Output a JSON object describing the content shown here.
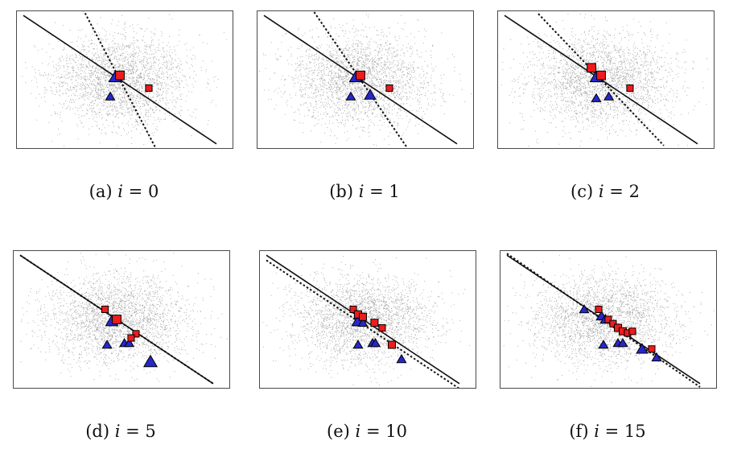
{
  "panels": [
    {
      "caption": {
        "label": "(a)",
        "var": "i",
        "eq": " = ",
        "value": "0"
      },
      "solid_line": [
        [
          -1.0,
          0.76
        ],
        [
          1.0,
          -0.76
        ]
      ],
      "dotted_line": [
        [
          -0.38,
          0.83
        ],
        [
          0.38,
          -0.83
        ]
      ],
      "squares": [
        [
          0.0,
          0.05,
          1.2
        ],
        [
          0.3,
          -0.1,
          0.9
        ]
      ],
      "triangles": [
        [
          -0.05,
          0.03,
          1.2
        ],
        [
          -0.1,
          -0.2,
          0.9
        ]
      ]
    },
    {
      "caption": {
        "label": "(b)",
        "var": "i",
        "eq": " = ",
        "value": "1"
      },
      "solid_line": [
        [
          -1.0,
          0.76
        ],
        [
          1.0,
          -0.76
        ]
      ],
      "dotted_line": [
        [
          -0.48,
          0.8
        ],
        [
          0.48,
          -0.8
        ]
      ],
      "squares": [
        [
          0.0,
          0.05,
          1.2
        ],
        [
          0.3,
          -0.1,
          0.9
        ]
      ],
      "triangles": [
        [
          -0.05,
          0.03,
          1.2
        ],
        [
          -0.1,
          -0.2,
          0.9
        ],
        [
          0.1,
          -0.18,
          1.1
        ]
      ]
    },
    {
      "caption": {
        "label": "(c)",
        "var": "i",
        "eq": " = ",
        "value": "2"
      },
      "solid_line": [
        [
          -1.0,
          0.76
        ],
        [
          1.0,
          -0.76
        ]
      ],
      "dotted_line": [
        [
          -0.65,
          0.78
        ],
        [
          0.65,
          -0.78
        ]
      ],
      "squares": [
        [
          -0.1,
          0.14,
          1.2
        ],
        [
          0.0,
          0.05,
          1.2
        ],
        [
          0.3,
          -0.1,
          0.9
        ]
      ],
      "triangles": [
        [
          -0.05,
          0.03,
          1.2
        ],
        [
          -0.05,
          -0.22,
          0.9
        ],
        [
          0.08,
          -0.2,
          0.9
        ]
      ]
    },
    {
      "caption": {
        "label": "(d)",
        "var": "i",
        "eq": " = ",
        "value": "5"
      },
      "solid_line": [
        [
          -1.0,
          0.76
        ],
        [
          1.0,
          -0.76
        ]
      ],
      "dotted_line": [
        [
          -1.0,
          0.76
        ],
        [
          1.0,
          -0.76
        ]
      ],
      "squares": [
        [
          -0.12,
          0.12,
          0.9
        ],
        [
          0.0,
          0.0,
          1.2
        ],
        [
          0.2,
          -0.17,
          0.9
        ],
        [
          0.15,
          -0.22,
          0.9
        ]
      ],
      "triangles": [
        [
          -0.05,
          -0.02,
          1.2
        ],
        [
          -0.1,
          -0.3,
          0.9
        ],
        [
          0.08,
          -0.28,
          0.9
        ],
        [
          0.13,
          -0.28,
          0.9
        ],
        [
          0.35,
          -0.5,
          1.3
        ]
      ]
    },
    {
      "caption": {
        "label": "(e)",
        "var": "i",
        "eq": " = ",
        "value": "10"
      },
      "solid_line": [
        [
          -1.0,
          0.76
        ],
        [
          1.0,
          -0.76
        ]
      ],
      "dotted_line": [
        [
          -1.0,
          0.7
        ],
        [
          1.0,
          -0.82
        ]
      ],
      "squares": [
        [
          -0.1,
          0.12,
          0.9
        ],
        [
          -0.05,
          0.06,
          1.0
        ],
        [
          0.0,
          0.03,
          1.0
        ],
        [
          0.12,
          -0.04,
          1.0
        ],
        [
          0.2,
          -0.1,
          0.9
        ],
        [
          0.3,
          -0.3,
          1.0
        ]
      ],
      "triangles": [
        [
          -0.05,
          -0.02,
          1.2
        ],
        [
          0.0,
          -0.04,
          0.9
        ],
        [
          -0.05,
          -0.3,
          0.9
        ],
        [
          0.1,
          -0.28,
          0.9
        ],
        [
          0.13,
          -0.28,
          0.9
        ],
        [
          0.4,
          -0.47,
          0.9
        ]
      ]
    },
    {
      "caption": {
        "label": "(f)",
        "var": "i",
        "eq": " = ",
        "value": "15"
      },
      "solid_line": [
        [
          -1.0,
          0.76
        ],
        [
          1.0,
          -0.76
        ]
      ],
      "dotted_line": [
        [
          -1.0,
          0.78
        ],
        [
          1.0,
          -0.8
        ]
      ],
      "squares": [
        [
          -0.05,
          0.12,
          0.9
        ],
        [
          0.05,
          0.0,
          0.9
        ],
        [
          0.1,
          -0.05,
          0.9
        ],
        [
          0.15,
          -0.1,
          1.0
        ],
        [
          0.2,
          -0.14,
          1.0
        ],
        [
          0.25,
          -0.16,
          0.9
        ],
        [
          0.3,
          -0.14,
          0.9
        ],
        [
          0.5,
          -0.35,
          0.9
        ]
      ],
      "triangles": [
        [
          -0.2,
          0.12,
          0.9
        ],
        [
          -0.02,
          0.04,
          1.0
        ],
        [
          0.02,
          0.0,
          1.0
        ],
        [
          0.0,
          -0.3,
          0.9
        ],
        [
          0.15,
          -0.28,
          0.9
        ],
        [
          0.2,
          -0.28,
          0.9
        ],
        [
          0.4,
          -0.35,
          1.1
        ],
        [
          0.55,
          -0.45,
          0.9
        ]
      ]
    }
  ],
  "colors": {
    "square_fill": "#ee1c1c",
    "triangle_fill": "#2727cc",
    "marker_stroke": "#000000",
    "scatter": "#555555",
    "line": "#111111",
    "frame": "#4a4a4a"
  }
}
